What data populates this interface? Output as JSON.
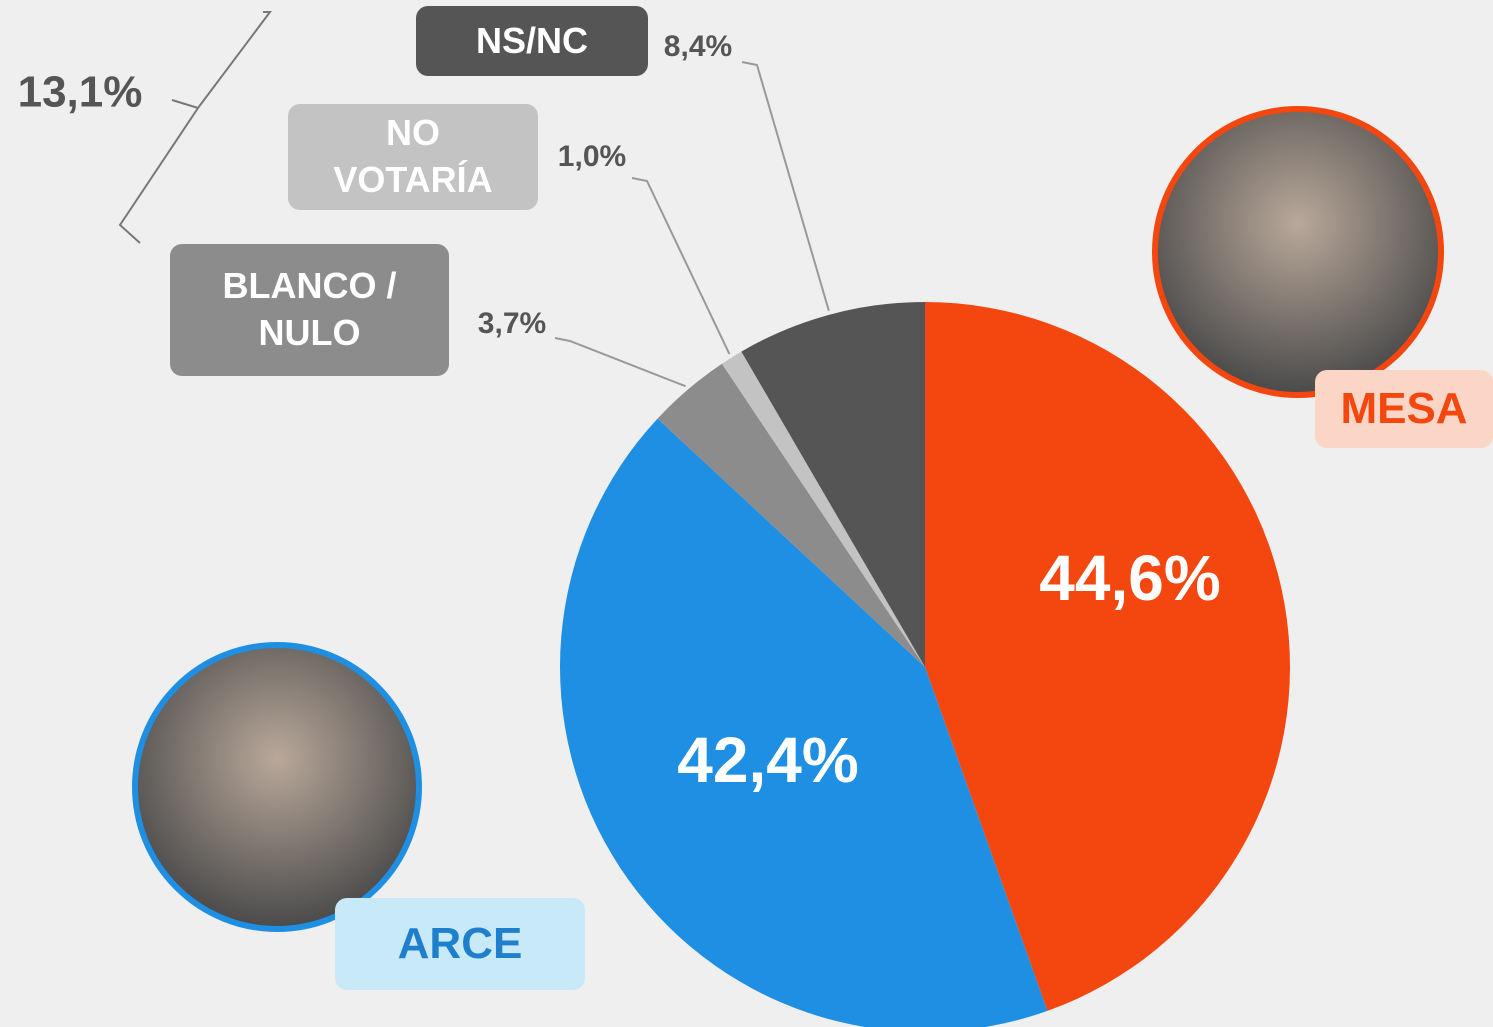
{
  "chart_data": {
    "type": "pie",
    "categories": [
      "MESA",
      "ARCE",
      "BLANCO / NULO",
      "NO VOTARÍA",
      "NS/NC"
    ],
    "values": [
      44.6,
      42.4,
      3.7,
      1.0,
      8.4
    ],
    "value_labels": [
      "44,6%",
      "42,4%",
      "3,7%",
      "1,0%",
      "8,4%"
    ],
    "colors": [
      "#f4470f",
      "#1e8fe3",
      "#8c8c8c",
      "#c3c3c3",
      "#555555"
    ],
    "annotation": "13,1%"
  }
}
